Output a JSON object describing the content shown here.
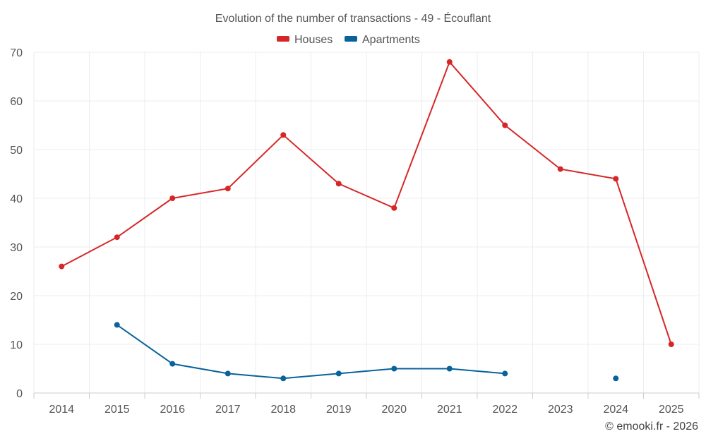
{
  "chart_data": {
    "type": "line",
    "title": "Evolution of the number of transactions - 49 - Écouflant",
    "categories": [
      "2014",
      "2015",
      "2016",
      "2017",
      "2018",
      "2019",
      "2020",
      "2021",
      "2022",
      "2023",
      "2024",
      "2025"
    ],
    "ylim": [
      0,
      70
    ],
    "yticks": [
      0,
      10,
      20,
      30,
      40,
      50,
      60,
      70
    ],
    "grid": true,
    "legend_position": "top-center",
    "series": [
      {
        "name": "Houses",
        "color": "#d62728",
        "values": [
          26,
          32,
          40,
          42,
          53,
          43,
          38,
          68,
          55,
          46,
          44,
          10
        ]
      },
      {
        "name": "Apartments",
        "color": "#08629c",
        "values": [
          null,
          14,
          6,
          4,
          3,
          4,
          5,
          5,
          4,
          null,
          3,
          null
        ]
      }
    ],
    "credit": "© emooki.fr - 2026"
  }
}
